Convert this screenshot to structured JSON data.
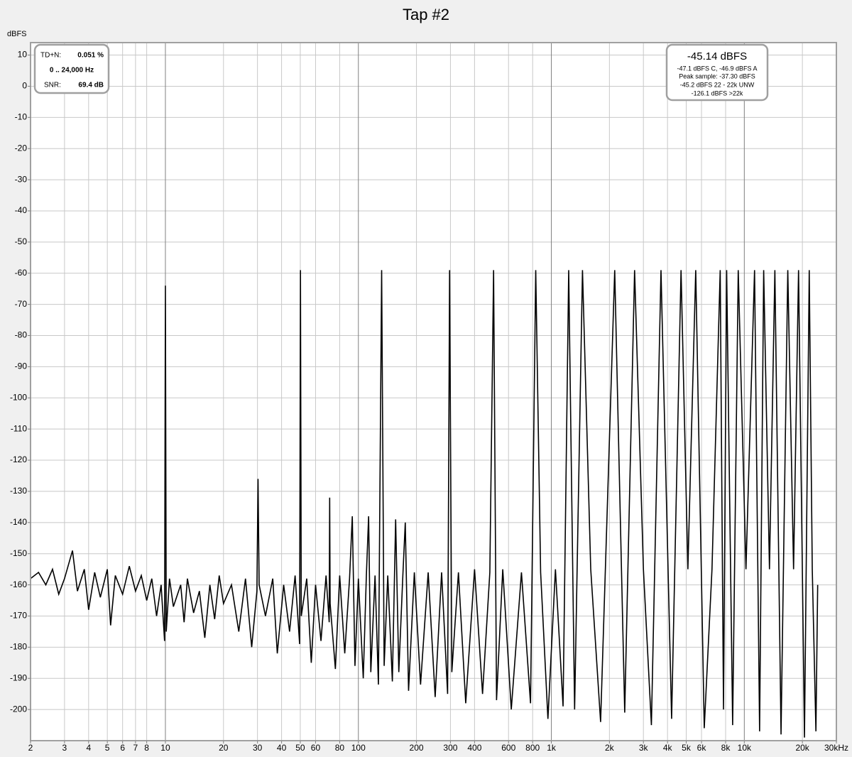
{
  "chart_data": {
    "type": "line",
    "title": "Tap #2",
    "y_label": "dBFS",
    "xscale": "log",
    "grid": true,
    "color": "#000000",
    "xlim": [
      2,
      30000
    ],
    "ylim": [
      -210,
      14
    ],
    "xticks": [
      2,
      3,
      4,
      5,
      6,
      7,
      8,
      10,
      20,
      30,
      40,
      50,
      60,
      80,
      100,
      200,
      300,
      400,
      600,
      800,
      {
        "value": 1000,
        "label": "1k"
      },
      {
        "value": 2000,
        "label": "2k"
      },
      {
        "value": 3000,
        "label": "3k"
      },
      {
        "value": 4000,
        "label": "4k"
      },
      {
        "value": 5000,
        "label": "5k"
      },
      {
        "value": 6000,
        "label": "6k"
      },
      {
        "value": 8000,
        "label": "8k"
      },
      {
        "value": 10000,
        "label": "10k"
      },
      {
        "value": 20000,
        "label": "20k"
      },
      {
        "value": 30000,
        "label": "30kHz"
      }
    ],
    "yticks": [
      10,
      0,
      -10,
      -20,
      -30,
      -40,
      -50,
      -60,
      -70,
      -80,
      -90,
      -100,
      -110,
      -120,
      -130,
      -140,
      -150,
      -160,
      -170,
      -180,
      -190,
      -200
    ],
    "x": [
      2,
      2.2,
      2.4,
      2.6,
      2.8,
      3,
      3.3,
      3.5,
      3.8,
      4,
      4.3,
      4.6,
      5,
      5.2,
      5.5,
      6,
      6.5,
      7,
      7.5,
      8,
      8.5,
      9,
      9.5,
      9.9,
      10,
      10.1,
      10.5,
      11,
      12,
      12.5,
      13,
      14,
      15,
      16,
      17,
      18,
      19,
      20,
      22,
      24,
      26,
      28,
      29.8,
      30.2,
      30.6,
      33,
      36,
      38,
      41,
      44,
      47,
      49.6,
      50.1,
      50.6,
      54,
      57,
      60,
      64,
      68,
      70.6,
      71,
      71.4,
      76,
      80,
      85,
      90,
      93,
      96,
      100,
      106,
      110,
      113,
      116,
      122,
      127,
      132,
      136,
      142,
      150,
      156,
      162,
      170,
      175,
      182,
      195,
      210,
      230,
      250,
      270,
      290,
      297,
      305,
      330,
      360,
      400,
      440,
      480,
      502,
      520,
      560,
      620,
      700,
      780,
      830,
      880,
      960,
      1050,
      1150,
      1230,
      1320,
      1450,
      1600,
      1800,
      2130,
      2400,
      2700,
      3000,
      3300,
      3700,
      4200,
      4700,
      5100,
      5600,
      6200,
      6800,
      7500,
      7800,
      8100,
      8700,
      9300,
      10200,
      11300,
      12000,
      12600,
      13500,
      14400,
      15500,
      16800,
      18000,
      19100,
      20500,
      21700,
      22500,
      23500,
      24000
    ],
    "values": [
      -158,
      -156,
      -160,
      -155,
      -163,
      -158,
      -149,
      -162,
      -155,
      -168,
      -156,
      -164,
      -155,
      -173,
      -157,
      -163,
      -154,
      -162,
      -157,
      -165,
      -158,
      -170,
      -160,
      -178,
      -64,
      -175,
      -158,
      -167,
      -160,
      -172,
      -158,
      -169,
      -162,
      -177,
      -160,
      -171,
      -157,
      -166,
      -160,
      -175,
      -158,
      -180,
      -162,
      -126,
      -160,
      -170,
      -158,
      -182,
      -160,
      -175,
      -157,
      -179,
      -59,
      -170,
      -158,
      -185,
      -160,
      -178,
      -157,
      -172,
      -132,
      -166,
      -187,
      -157,
      -182,
      -158,
      -138,
      -186,
      -158,
      -190,
      -157,
      -138,
      -188,
      -157,
      -192,
      -59,
      -186,
      -157,
      -191,
      -139,
      -188,
      -157,
      -140,
      -194,
      -156,
      -192,
      -156,
      -196,
      -156,
      -195,
      -59,
      -188,
      -156,
      -198,
      -155,
      -195,
      -156,
      -59,
      -197,
      -155,
      -200,
      -156,
      -198,
      -59,
      -156,
      -203,
      -155,
      -199,
      -59,
      -200,
      -59,
      -155,
      -204,
      -59,
      -201,
      -59,
      -155,
      -205,
      -59,
      -203,
      -59,
      -155,
      -59,
      -206,
      -155,
      -59,
      -200,
      -59,
      -205,
      -59,
      -155,
      -59,
      -207,
      -59,
      -155,
      -59,
      -208,
      -59,
      -155,
      -59,
      -209,
      -59,
      -155,
      -207,
      -160
    ],
    "info_left": {
      "tdn_label": "TD+N:",
      "tdn_value": "0.051 %",
      "range": "0 .. 24,000 Hz",
      "snr_label": "SNR:",
      "snr_value": "69.4 dB"
    },
    "info_right": {
      "level": "-45.14 dBFS",
      "lines": [
        "-47.1 dBFS C, -46.9 dBFS A",
        "Peak sample: -37.30 dBFS",
        "-45.2 dBFS 22 - 22k UNW",
        "-126.1 dBFS >22k"
      ]
    }
  }
}
